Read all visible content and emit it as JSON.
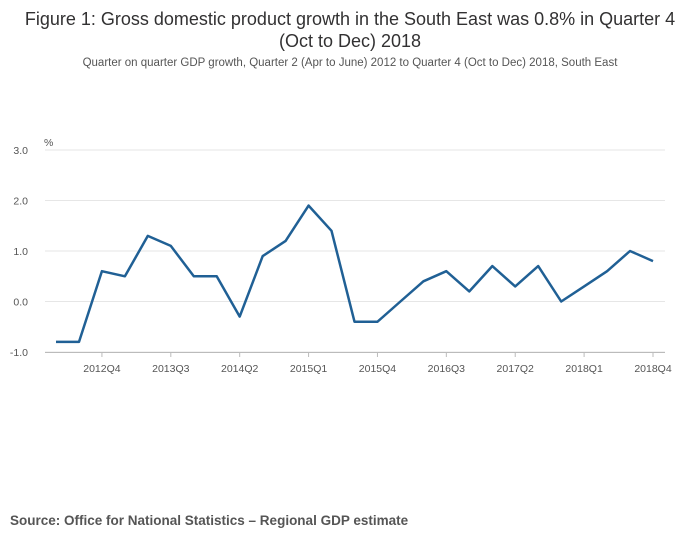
{
  "title": "Figure 1: Gross domestic product growth in the South East was 0.8% in Quarter 4 (Oct to Dec) 2018",
  "subtitle": "Quarter on quarter GDP growth, Quarter 2 (Apr to June) 2012 to Quarter 4 (Oct to Dec) 2018, South East",
  "source": "Source: Office for National Statistics – Regional GDP estimate",
  "chart_data": {
    "type": "line",
    "title": "Figure 1: Gross domestic product growth in the South East was 0.8% in Quarter 4 (Oct to Dec) 2018",
    "ylabel": "%",
    "xlabel": "",
    "ylim": [
      -1.0,
      3.0
    ],
    "yticks": [
      3.0,
      2.0,
      1.0,
      0.0,
      -1.0
    ],
    "ytick_labels": [
      "3.0",
      "2.0",
      "1.0",
      "0.0",
      "-1.0"
    ],
    "grid": true,
    "color": "#206095",
    "categories": [
      "2012Q2",
      "2012Q3",
      "2012Q4",
      "2013Q1",
      "2013Q2",
      "2013Q3",
      "2013Q4",
      "2014Q1",
      "2014Q2",
      "2014Q3",
      "2014Q4",
      "2015Q1",
      "2015Q2",
      "2015Q3",
      "2015Q4",
      "2016Q1",
      "2016Q2",
      "2016Q3",
      "2016Q4",
      "2017Q1",
      "2017Q2",
      "2017Q3",
      "2017Q4",
      "2018Q1",
      "2018Q2",
      "2018Q3",
      "2018Q4"
    ],
    "xtick_labels": [
      "2012Q4",
      "2013Q3",
      "2014Q2",
      "2015Q1",
      "2015Q4",
      "2016Q3",
      "2017Q2",
      "2018Q1",
      "2018Q4"
    ],
    "series": [
      {
        "name": "South East",
        "values": [
          -0.8,
          -0.8,
          0.6,
          0.5,
          1.3,
          1.1,
          0.5,
          0.5,
          -0.3,
          0.9,
          1.2,
          1.9,
          1.4,
          -0.4,
          -0.4,
          0.0,
          0.4,
          0.6,
          0.2,
          0.7,
          0.3,
          0.7,
          0.0,
          0.3,
          0.6,
          1.0,
          0.8
        ]
      }
    ]
  }
}
